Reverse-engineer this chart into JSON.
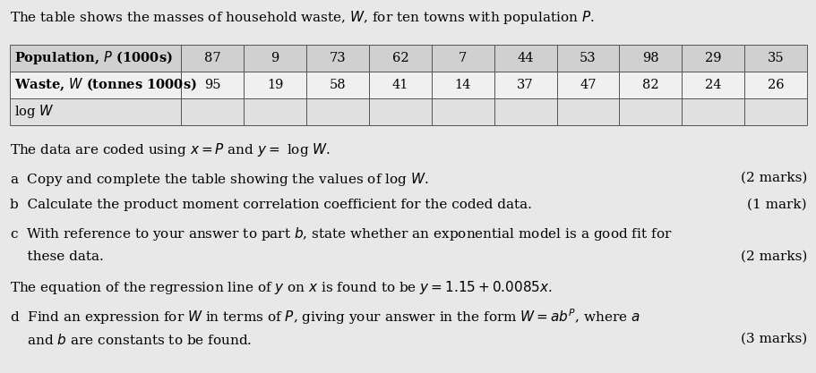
{
  "bg_color": "#e8e8e8",
  "table_header_bg": "#d0d0d0",
  "table_data_bg": "#f0f0f0",
  "table_logW_bg": "#e0e0e0",
  "title": "The table shows the masses of household waste, $W$, for ten towns with population $P$.",
  "pop_label": "Population, $P$ (1000s)",
  "waste_label": "Waste, $W$ (tonnes 1000s)",
  "logW_label": "log $W$",
  "pop_values": [
    "87",
    "9",
    "73",
    "62",
    "7",
    "44",
    "53",
    "98",
    "29",
    "35"
  ],
  "waste_values": [
    "95",
    "19",
    "58",
    "41",
    "14",
    "37",
    "47",
    "82",
    "24",
    "26"
  ],
  "coded_line": "The data are coded using $x = P$ and $y = $ log $W$.",
  "part_a": "a  Copy and complete the table showing the values of log $W$.",
  "part_a_marks": "(2 marks)",
  "part_b": "b  Calculate the product moment correlation coefficient for the coded data.",
  "part_b_marks": "(1 mark)",
  "part_c1": "c  With reference to your answer to part $b$, state whether an exponential model is a good fit for",
  "part_c2": "    these data.",
  "part_c_marks": "(2 marks)",
  "reg_line": "The equation of the regression line of $y$ on $x$ is found to be $y = 1.15 + 0.0085x$.",
  "part_d1": "d  Find an expression for $W$ in terms of $P$, giving your answer in the form $W = ab^P$, where $a$",
  "part_d2": "    and $b$ are constants to be found.",
  "part_d_marks": "(3 marks)",
  "fontsize": 11,
  "marks_fontsize": 11
}
